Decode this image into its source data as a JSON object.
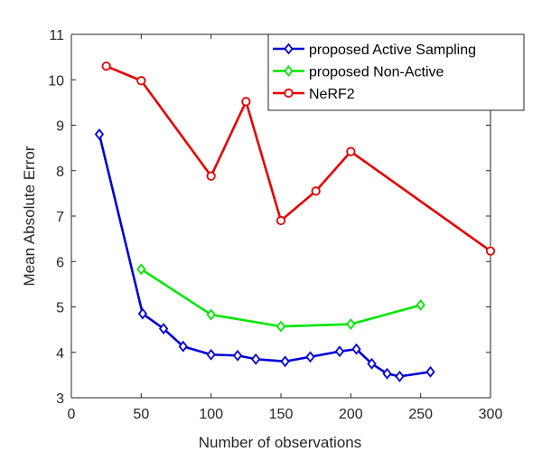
{
  "chart_data": {
    "type": "line",
    "title": "",
    "xlabel": "Number of observations",
    "ylabel": "Mean Absolute Error",
    "xlim": [
      0,
      300
    ],
    "ylim": [
      3,
      11
    ],
    "xticks": [
      0,
      50,
      100,
      150,
      200,
      250,
      300
    ],
    "yticks": [
      3,
      4,
      5,
      6,
      7,
      8,
      9,
      10,
      11
    ],
    "grid": false,
    "legend_position": "top-right",
    "series": [
      {
        "name": "proposed Active Sampling",
        "color": "#0000d6",
        "marker": "diamond",
        "points": [
          {
            "x": 20,
            "y": 8.8
          },
          {
            "x": 51,
            "y": 4.85
          },
          {
            "x": 66,
            "y": 4.52
          },
          {
            "x": 80,
            "y": 4.13
          },
          {
            "x": 100,
            "y": 3.95
          },
          {
            "x": 119,
            "y": 3.93
          },
          {
            "x": 132,
            "y": 3.85
          },
          {
            "x": 153,
            "y": 3.8
          },
          {
            "x": 171,
            "y": 3.9
          },
          {
            "x": 192,
            "y": 4.02
          },
          {
            "x": 204,
            "y": 4.07
          },
          {
            "x": 215,
            "y": 3.75
          },
          {
            "x": 226,
            "y": 3.53
          },
          {
            "x": 235,
            "y": 3.47
          },
          {
            "x": 257,
            "y": 3.57
          }
        ]
      },
      {
        "name": "proposed Non-Active",
        "color": "#00e600",
        "marker": "diamond",
        "points": [
          {
            "x": 50,
            "y": 5.83
          },
          {
            "x": 100,
            "y": 4.83
          },
          {
            "x": 150,
            "y": 4.57
          },
          {
            "x": 200,
            "y": 4.62
          },
          {
            "x": 250,
            "y": 5.04
          }
        ]
      },
      {
        "name": "NeRF2",
        "color": "#e60000",
        "marker": "circle",
        "points": [
          {
            "x": 25,
            "y": 10.3
          },
          {
            "x": 50,
            "y": 9.98
          },
          {
            "x": 100,
            "y": 7.88
          },
          {
            "x": 125,
            "y": 9.52
          },
          {
            "x": 150,
            "y": 6.9
          },
          {
            "x": 175,
            "y": 7.55
          },
          {
            "x": 200,
            "y": 8.42
          },
          {
            "x": 300,
            "y": 6.23
          }
        ]
      }
    ]
  }
}
